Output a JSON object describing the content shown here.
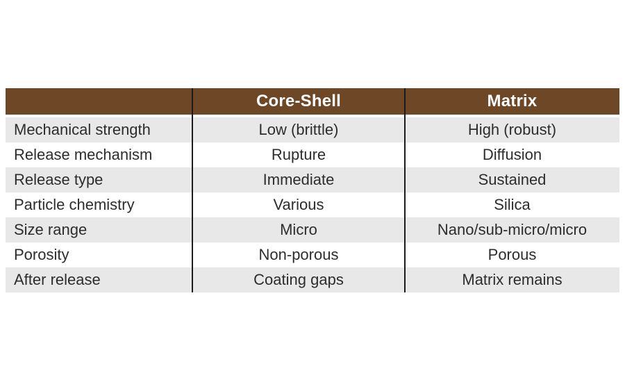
{
  "colors": {
    "header_bg": "#6d4726",
    "header_text": "#ffffff",
    "row_alt_bg": "#e8e8e8",
    "row_bg": "#ffffff",
    "divider": "#1b1b1b",
    "body_text": "#2d2d2d"
  },
  "chart_data": {
    "type": "table",
    "title": "",
    "columns": [
      "",
      "Core-Shell",
      "Matrix"
    ],
    "rows": [
      {
        "label": "Mechanical strength",
        "core_shell": "Low (brittle)",
        "matrix": "High (robust)"
      },
      {
        "label": "Release mechanism",
        "core_shell": "Rupture",
        "matrix": "Diffusion"
      },
      {
        "label": "Release type",
        "core_shell": "Immediate",
        "matrix": "Sustained"
      },
      {
        "label": "Particle chemistry",
        "core_shell": "Various",
        "matrix": "Silica"
      },
      {
        "label": "Size range",
        "core_shell": "Micro",
        "matrix": "Nano/sub-micro/micro"
      },
      {
        "label": "Porosity",
        "core_shell": "Non-porous",
        "matrix": "Porous"
      },
      {
        "label": "After release",
        "core_shell": "Coating gaps",
        "matrix": "Matrix remains"
      }
    ]
  }
}
